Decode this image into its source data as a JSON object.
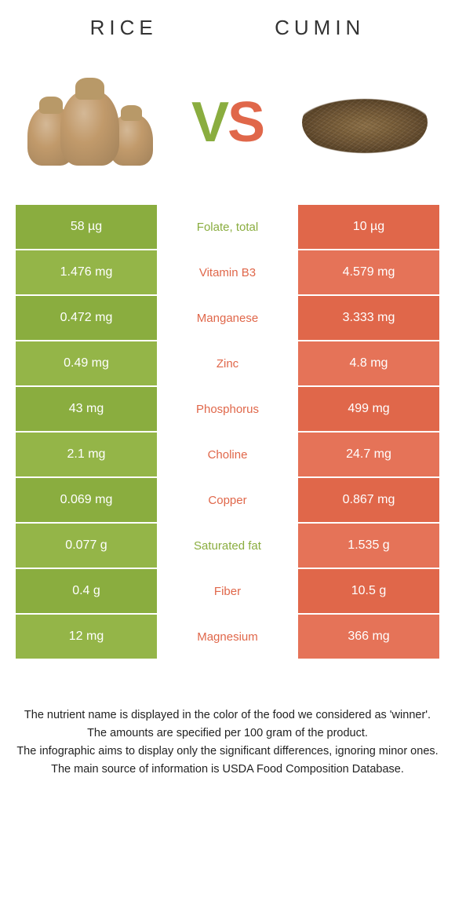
{
  "header": {
    "left_title": "RICE",
    "right_title": "CUMIN"
  },
  "vs": {
    "v": "V",
    "s": "S"
  },
  "colors": {
    "green": "#8aad3f",
    "green_alt": "#94b548",
    "orange": "#e0674a",
    "orange_alt": "#e57358",
    "white": "#ffffff"
  },
  "table": {
    "rows": [
      {
        "left": "58 µg",
        "mid": "Folate, total",
        "right": "10 µg",
        "mid_color": "#8aad3f",
        "left_bg": "#8aad3f",
        "right_bg": "#e0674a"
      },
      {
        "left": "1.476 mg",
        "mid": "Vitamin B3",
        "right": "4.579 mg",
        "mid_color": "#e0674a",
        "left_bg": "#94b548",
        "right_bg": "#e57358"
      },
      {
        "left": "0.472 mg",
        "mid": "Manganese",
        "right": "3.333 mg",
        "mid_color": "#e0674a",
        "left_bg": "#8aad3f",
        "right_bg": "#e0674a"
      },
      {
        "left": "0.49 mg",
        "mid": "Zinc",
        "right": "4.8 mg",
        "mid_color": "#e0674a",
        "left_bg": "#94b548",
        "right_bg": "#e57358"
      },
      {
        "left": "43 mg",
        "mid": "Phosphorus",
        "right": "499 mg",
        "mid_color": "#e0674a",
        "left_bg": "#8aad3f",
        "right_bg": "#e0674a"
      },
      {
        "left": "2.1 mg",
        "mid": "Choline",
        "right": "24.7 mg",
        "mid_color": "#e0674a",
        "left_bg": "#94b548",
        "right_bg": "#e57358"
      },
      {
        "left": "0.069 mg",
        "mid": "Copper",
        "right": "0.867 mg",
        "mid_color": "#e0674a",
        "left_bg": "#8aad3f",
        "right_bg": "#e0674a"
      },
      {
        "left": "0.077 g",
        "mid": "Saturated fat",
        "right": "1.535 g",
        "mid_color": "#8aad3f",
        "left_bg": "#94b548",
        "right_bg": "#e57358"
      },
      {
        "left": "0.4 g",
        "mid": "Fiber",
        "right": "10.5 g",
        "mid_color": "#e0674a",
        "left_bg": "#8aad3f",
        "right_bg": "#e0674a"
      },
      {
        "left": "12 mg",
        "mid": "Magnesium",
        "right": "366 mg",
        "mid_color": "#e0674a",
        "left_bg": "#94b548",
        "right_bg": "#e57358"
      }
    ]
  },
  "footer": {
    "line1": "The nutrient name is displayed in the color of the food we considered as 'winner'.",
    "line2": "The amounts are specified per 100 gram of the product.",
    "line3": "The infographic aims to display only the significant differences, ignoring minor ones.",
    "line4": "The main source of information is USDA Food Composition Database."
  }
}
